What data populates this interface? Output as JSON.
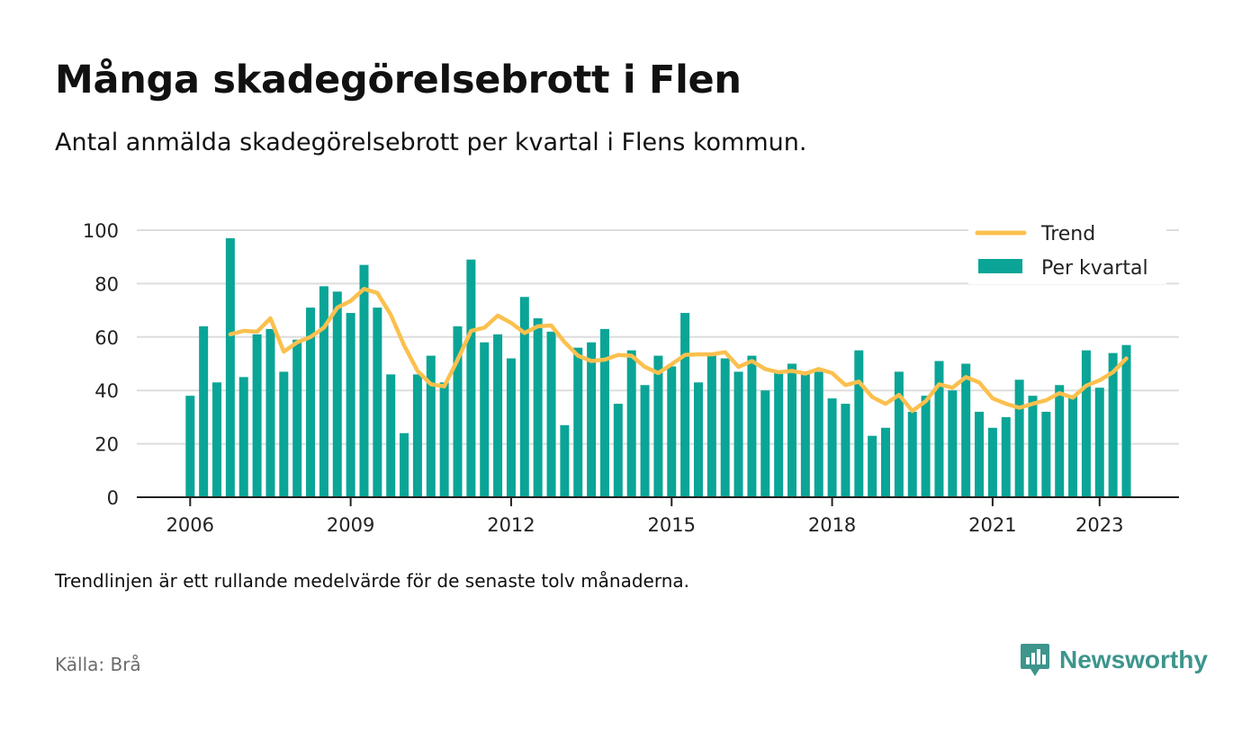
{
  "title": "Många skadegörelsebrott i Flen",
  "subtitle": "Antal anmälda skadegörelsebrott per kvartal i Flens kommun.",
  "note": "Trendlinjen är ett rullande medelvärde för de senaste tolv månaderna.",
  "source": "Källa: Brå",
  "brand": {
    "name": "Newsworthy",
    "logo_icon": "newsworthy-chat-bars-icon",
    "color": "#3d958c"
  },
  "colors": {
    "bar": "#0aa597",
    "trend": "#fbc04e",
    "grid": "#dddddd",
    "axis": "#222222"
  },
  "chart_data": {
    "type": "bar",
    "xlabel": "",
    "ylabel": "",
    "ylim": [
      0,
      100
    ],
    "y_ticks": [
      0,
      20,
      40,
      60,
      80,
      100
    ],
    "x_tick_labels": [
      "2006",
      "2009",
      "2012",
      "2015",
      "2018",
      "2021",
      "2023"
    ],
    "grid": true,
    "legend_position": "top-right",
    "start_period": "2006 Q1",
    "categories": [
      "2006 Q1",
      "2006 Q2",
      "2006 Q3",
      "2006 Q4",
      "2007 Q1",
      "2007 Q2",
      "2007 Q3",
      "2007 Q4",
      "2008 Q1",
      "2008 Q2",
      "2008 Q3",
      "2008 Q4",
      "2009 Q1",
      "2009 Q2",
      "2009 Q3",
      "2009 Q4",
      "2010 Q1",
      "2010 Q2",
      "2010 Q3",
      "2010 Q4",
      "2011 Q1",
      "2011 Q2",
      "2011 Q3",
      "2011 Q4",
      "2012 Q1",
      "2012 Q2",
      "2012 Q3",
      "2012 Q4",
      "2013 Q1",
      "2013 Q2",
      "2013 Q3",
      "2013 Q4",
      "2014 Q1",
      "2014 Q2",
      "2014 Q3",
      "2014 Q4",
      "2015 Q1",
      "2015 Q2",
      "2015 Q3",
      "2015 Q4",
      "2016 Q1",
      "2016 Q2",
      "2016 Q3",
      "2016 Q4",
      "2017 Q1",
      "2017 Q2",
      "2017 Q3",
      "2017 Q4",
      "2018 Q1",
      "2018 Q2",
      "2018 Q3",
      "2018 Q4",
      "2019 Q1",
      "2019 Q2",
      "2019 Q3",
      "2019 Q4",
      "2020 Q1",
      "2020 Q2",
      "2020 Q3",
      "2020 Q4",
      "2021 Q1",
      "2021 Q2",
      "2021 Q3",
      "2021 Q4",
      "2022 Q1",
      "2022 Q2",
      "2022 Q3",
      "2022 Q4",
      "2023 Q1",
      "2023 Q2",
      "2023 Q3"
    ],
    "series": [
      {
        "name": "Per kvartal",
        "kind": "bar",
        "values": [
          38,
          64,
          43,
          97,
          45,
          61,
          63,
          47,
          59,
          71,
          79,
          77,
          69,
          87,
          71,
          46,
          24,
          46,
          53,
          43,
          64,
          89,
          58,
          61,
          52,
          75,
          67,
          62,
          27,
          56,
          58,
          63,
          35,
          55,
          42,
          53,
          49,
          69,
          43,
          53,
          52,
          47,
          53,
          40,
          47,
          50,
          47,
          47,
          37,
          35,
          55,
          23,
          26,
          47,
          32,
          38,
          51,
          40,
          50,
          32,
          26,
          30,
          44,
          38,
          32,
          42,
          38,
          55,
          41,
          54,
          57
        ]
      },
      {
        "name": "Trend",
        "kind": "line",
        "values": [
          null,
          null,
          null,
          61,
          62.3,
          62,
          67,
          54.5,
          58,
          60,
          63.5,
          71,
          73.5,
          78,
          76.5,
          68.3,
          56.8,
          47.3,
          42.3,
          41.5,
          51.5,
          62.3,
          63.5,
          68,
          65.3,
          61.5,
          64,
          64.3,
          58,
          53,
          51,
          51.5,
          53.3,
          53,
          48.8,
          46.5,
          49.8,
          53.3,
          53.5,
          53.5,
          54.3,
          48.8,
          51,
          48,
          46.8,
          47.3,
          46.3,
          48,
          46.5,
          42,
          43.3,
          37.5,
          35,
          38.3,
          32.3,
          36,
          42.3,
          41,
          45,
          43,
          37,
          35,
          33.5,
          35,
          36.3,
          39,
          37.3,
          41.8,
          43.8,
          46.8,
          52
        ]
      }
    ]
  }
}
